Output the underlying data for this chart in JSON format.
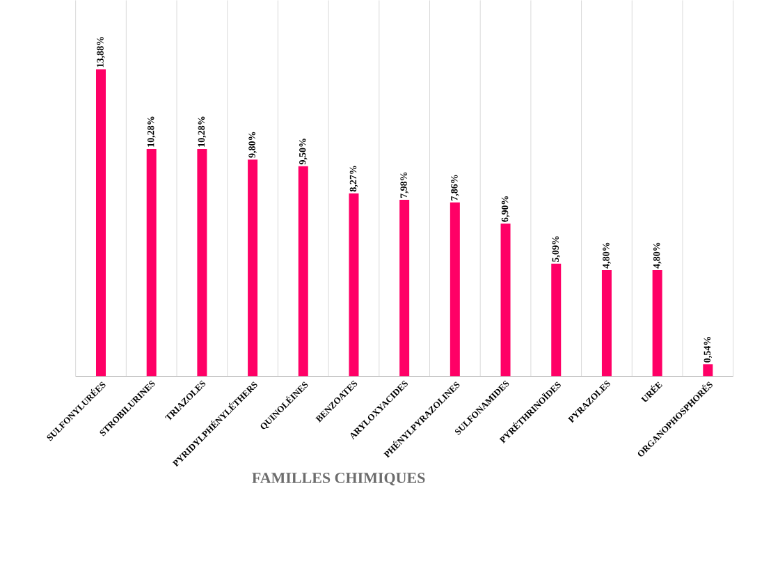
{
  "chart_data": {
    "type": "bar",
    "xlabel": "FAMILLES  CHIMIQUES",
    "categories": [
      "SULFONYLURÉES",
      "STROBILURINES",
      "TRIAZOLES",
      "PYRIDYLPHÉNYLÉTHERS",
      "QUINOLÉINES",
      "BENZOATES",
      "ARYLOXYACIDES",
      "PHÉNYLPYRAZOLINES",
      "SULFONAMIDES",
      "PYRÉTHRINOÏDES",
      "PYRAZOLES",
      "URÉE",
      "ORGANOPHOSPHORÉS"
    ],
    "values": [
      13.88,
      10.28,
      10.28,
      9.8,
      9.5,
      8.27,
      7.98,
      7.86,
      6.9,
      5.09,
      4.8,
      4.8,
      0.54
    ],
    "value_labels": [
      "13,88%",
      "10,28%",
      "10,28%",
      "9,80%",
      "9,50%",
      "8,27%",
      "7,98%",
      "7,86%",
      "6,90%",
      "5,09%",
      "4,80%",
      "4,80%",
      "0,54%"
    ],
    "color": "#ff0066",
    "ylim": [
      0,
      17
    ],
    "grid": "x"
  }
}
